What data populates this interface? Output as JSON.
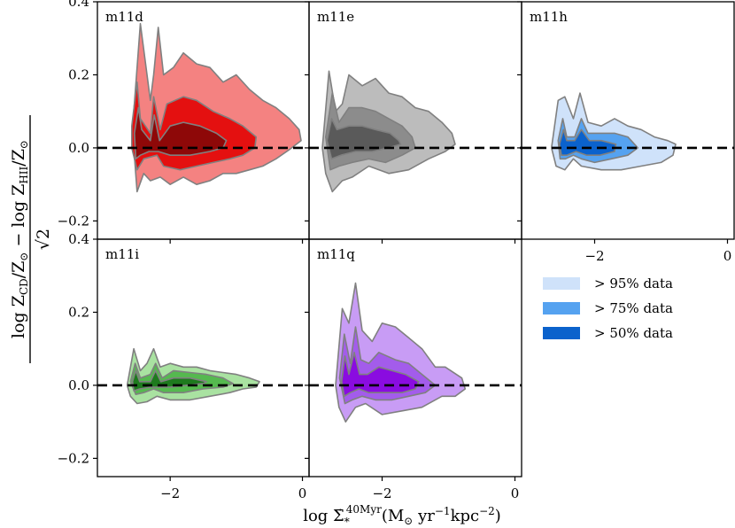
{
  "figure": {
    "ylabel": {
      "num_a": "log Z",
      "num_a_sub": "CD",
      "num_b": "/Z",
      "num_b_sub": "⊙",
      "num_c": " − log Z",
      "num_c_sub": "HII",
      "num_d": "/Z",
      "num_d_sub": "⊙",
      "den": "√2"
    },
    "xlabel": {
      "a": "log Σ̇",
      "a_sub": "*",
      "a_sup": "40Myr",
      "b": "(M",
      "b_sub": "⊙",
      "c": " yr",
      "c_sup": "−1",
      "d": "kpc",
      "d_sup": "−2",
      "e": ")"
    }
  },
  "legend": {
    "entries": [
      {
        "label": "> 95% data",
        "color": "#cfe2fa"
      },
      {
        "label": "> 75% data",
        "color": "#55a2f0"
      },
      {
        "label": "> 50% data",
        "color": "#0b62cc"
      }
    ]
  },
  "chart_data": [
    {
      "type": "contour",
      "panel": "m11d",
      "colors": {
        "outer": "#f48281",
        "mid": "#e41010",
        "inner": "#8e0808"
      },
      "xlim": [
        -3.1,
        0.1
      ],
      "ylim": [
        -0.25,
        0.4
      ],
      "xticks": [
        -2,
        0
      ],
      "yticks": [
        -0.2,
        0.0,
        0.2,
        0.4
      ],
      "xtick_labels": [
        "−2",
        "0"
      ],
      "ytick_labels": [
        "−0.2",
        "0.0",
        "0.2",
        "0.4"
      ],
      "reference_line": {
        "y": 0.0,
        "style": "dashed"
      },
      "levels": [
        {
          "label": "> 95% data",
          "x": [
            -2.55,
            -2.45,
            -2.3,
            -2.25,
            -2.18,
            -2.1,
            -1.95,
            -1.8,
            -1.6,
            -1.4,
            -1.2,
            -1.0,
            -0.8,
            -0.6,
            -0.4,
            -0.2,
            -0.05,
            -0.02,
            -0.2,
            -0.4,
            -0.6,
            -0.8,
            -1.0,
            -1.2,
            -1.4,
            -1.6,
            -1.8,
            -2.0,
            -2.15,
            -2.3,
            -2.4,
            -2.5,
            -2.55
          ],
          "y": [
            0.1,
            0.34,
            0.13,
            0.2,
            0.33,
            0.2,
            0.22,
            0.26,
            0.23,
            0.22,
            0.18,
            0.2,
            0.16,
            0.13,
            0.11,
            0.08,
            0.05,
            0.02,
            -0.005,
            -0.03,
            -0.05,
            -0.06,
            -0.07,
            -0.07,
            -0.09,
            -0.1,
            -0.08,
            -0.1,
            -0.08,
            -0.09,
            -0.07,
            -0.12,
            0.0
          ]
        },
        {
          "label": "> 75% data",
          "x": [
            -2.58,
            -2.5,
            -2.45,
            -2.3,
            -2.25,
            -2.15,
            -2.05,
            -1.8,
            -1.6,
            -1.35,
            -1.1,
            -0.9,
            -0.7,
            -0.72,
            -0.9,
            -1.1,
            -1.35,
            -1.6,
            -1.85,
            -2.1,
            -2.2,
            -2.4,
            -2.5,
            -2.58
          ],
          "y": [
            0.06,
            0.18,
            0.08,
            0.04,
            0.14,
            0.05,
            0.12,
            0.14,
            0.13,
            0.1,
            0.08,
            0.06,
            0.03,
            0.0,
            -0.02,
            -0.03,
            -0.04,
            -0.05,
            -0.06,
            -0.05,
            -0.02,
            -0.03,
            -0.06,
            0.0
          ]
        },
        {
          "label": "> 50% data",
          "x": [
            -2.54,
            -2.48,
            -2.43,
            -2.3,
            -2.24,
            -2.16,
            -2.0,
            -1.8,
            -1.55,
            -1.3,
            -1.15,
            -1.2,
            -1.4,
            -1.7,
            -2.0,
            -2.18,
            -2.32,
            -2.45,
            -2.52,
            -2.54
          ],
          "y": [
            0.04,
            0.11,
            0.05,
            0.02,
            0.09,
            0.02,
            0.06,
            0.07,
            0.06,
            0.04,
            0.02,
            0.0,
            -0.01,
            -0.02,
            -0.02,
            -0.01,
            -0.01,
            -0.02,
            -0.03,
            0.04
          ]
        }
      ]
    },
    {
      "type": "contour",
      "panel": "m11e",
      "colors": {
        "outer": "#bcbcbc",
        "mid": "#8c8c8c",
        "inner": "#5a5a5a"
      },
      "xlim": [
        -3.1,
        0.1
      ],
      "ylim": [
        -0.25,
        0.4
      ],
      "xticks": [
        -2,
        0
      ],
      "yticks": [
        -0.2,
        0.0,
        0.2,
        0.4
      ],
      "xtick_labels": [
        "−2",
        "0"
      ],
      "ytick_labels": [
        "−0.2",
        "0.0",
        "0.2",
        "0.4"
      ],
      "reference_line": {
        "y": 0.0,
        "style": "dashed"
      },
      "levels": [
        {
          "label": "> 95% data",
          "x": [
            -2.9,
            -2.8,
            -2.7,
            -2.6,
            -2.5,
            -2.3,
            -2.1,
            -1.9,
            -1.7,
            -1.5,
            -1.3,
            -1.1,
            -0.95,
            -0.9,
            -1.05,
            -1.3,
            -1.6,
            -1.9,
            -2.2,
            -2.45,
            -2.6,
            -2.75,
            -2.85,
            -2.9
          ],
          "y": [
            0.0,
            0.21,
            0.1,
            0.12,
            0.2,
            0.17,
            0.19,
            0.15,
            0.14,
            0.11,
            0.1,
            0.07,
            0.04,
            0.01,
            -0.01,
            -0.03,
            -0.06,
            -0.07,
            -0.05,
            -0.08,
            -0.09,
            -0.12,
            -0.07,
            0.0
          ]
        },
        {
          "label": "> 75% data",
          "x": [
            -2.85,
            -2.75,
            -2.65,
            -2.5,
            -2.3,
            -2.1,
            -1.9,
            -1.7,
            -1.55,
            -1.5,
            -1.7,
            -1.95,
            -2.2,
            -2.45,
            -2.65,
            -2.78,
            -2.85
          ],
          "y": [
            0.03,
            0.15,
            0.07,
            0.11,
            0.11,
            0.1,
            0.08,
            0.06,
            0.03,
            0.0,
            -0.02,
            -0.04,
            -0.03,
            -0.04,
            -0.05,
            -0.06,
            0.03
          ]
        },
        {
          "label": "> 50% data",
          "x": [
            -2.83,
            -2.76,
            -2.68,
            -2.5,
            -2.3,
            -2.1,
            -1.88,
            -1.75,
            -1.72,
            -1.9,
            -2.15,
            -2.4,
            -2.62,
            -2.76,
            -2.83
          ],
          "y": [
            0.02,
            0.08,
            0.05,
            0.06,
            0.06,
            0.05,
            0.04,
            0.02,
            0.01,
            0.0,
            -0.01,
            -0.01,
            -0.02,
            -0.03,
            0.02
          ]
        }
      ]
    },
    {
      "type": "contour",
      "panel": "m11h",
      "colors": {
        "outer": "#cfe2fa",
        "mid": "#55a2f0",
        "inner": "#0b62cc"
      },
      "xlim": [
        -3.1,
        0.1
      ],
      "ylim": [
        -0.25,
        0.4
      ],
      "xticks": [
        -2,
        0
      ],
      "yticks": [
        -0.2,
        0.0,
        0.2,
        0.4
      ],
      "xtick_labels": [
        "−2",
        "0"
      ],
      "ytick_labels": [
        "−0.2",
        "0.0",
        "0.2",
        "0.4"
      ],
      "reference_line": {
        "y": 0.0,
        "style": "dashed"
      },
      "levels": [
        {
          "label": "> 95% data",
          "x": [
            -2.65,
            -2.55,
            -2.45,
            -2.32,
            -2.22,
            -2.1,
            -1.9,
            -1.7,
            -1.5,
            -1.3,
            -1.1,
            -0.9,
            -0.78,
            -0.82,
            -1.0,
            -1.3,
            -1.6,
            -1.9,
            -2.2,
            -2.32,
            -2.45,
            -2.58,
            -2.65
          ],
          "y": [
            0.0,
            0.13,
            0.14,
            0.08,
            0.15,
            0.07,
            0.06,
            0.08,
            0.06,
            0.05,
            0.03,
            0.02,
            0.01,
            -0.02,
            -0.04,
            -0.05,
            -0.06,
            -0.06,
            -0.05,
            -0.03,
            -0.06,
            -0.05,
            0.0
          ]
        },
        {
          "label": "> 75% data",
          "x": [
            -2.55,
            -2.48,
            -2.42,
            -2.3,
            -2.2,
            -2.1,
            -1.9,
            -1.7,
            -1.5,
            -1.35,
            -1.5,
            -1.75,
            -2.0,
            -2.2,
            -2.32,
            -2.44,
            -2.52,
            -2.55
          ],
          "y": [
            0.02,
            0.08,
            0.03,
            0.03,
            0.08,
            0.04,
            0.04,
            0.04,
            0.03,
            0.0,
            -0.02,
            -0.03,
            -0.04,
            -0.03,
            -0.02,
            -0.03,
            -0.03,
            0.02
          ]
        },
        {
          "label": "> 50% data",
          "x": [
            -2.53,
            -2.47,
            -2.42,
            -2.3,
            -2.2,
            -2.08,
            -1.9,
            -1.68,
            -1.7,
            -1.92,
            -2.12,
            -2.28,
            -2.42,
            -2.5,
            -2.53
          ],
          "y": [
            0.01,
            0.05,
            0.02,
            0.02,
            0.05,
            0.02,
            0.02,
            0.01,
            -0.01,
            -0.02,
            -0.02,
            -0.01,
            -0.02,
            -0.02,
            0.01
          ]
        }
      ]
    },
    {
      "type": "contour",
      "panel": "m11i",
      "colors": {
        "outer": "#a9e2a1",
        "mid": "#55b94f",
        "inner": "#1e7a1e"
      },
      "xlim": [
        -3.1,
        0.1
      ],
      "ylim": [
        -0.25,
        0.4
      ],
      "xticks": [
        -2,
        0
      ],
      "yticks": [
        -0.2,
        0.0,
        0.2,
        0.4
      ],
      "xtick_labels": [
        "−2",
        "0"
      ],
      "ytick_labels": [
        "−0.2",
        "0.0",
        "0.2",
        "0.4"
      ],
      "reference_line": {
        "y": 0.0,
        "style": "dashed"
      },
      "levels": [
        {
          "label": "> 95% data",
          "x": [
            -2.65,
            -2.55,
            -2.45,
            -2.35,
            -2.25,
            -2.15,
            -2.0,
            -1.8,
            -1.6,
            -1.4,
            -1.2,
            -1.0,
            -0.8,
            -0.65,
            -0.7,
            -0.9,
            -1.1,
            -1.4,
            -1.7,
            -2.0,
            -2.2,
            -2.35,
            -2.5,
            -2.6,
            -2.65
          ],
          "y": [
            0.0,
            0.1,
            0.04,
            0.06,
            0.1,
            0.05,
            0.06,
            0.05,
            0.05,
            0.04,
            0.035,
            0.03,
            0.02,
            0.01,
            -0.005,
            -0.01,
            -0.02,
            -0.03,
            -0.04,
            -0.04,
            -0.03,
            -0.045,
            -0.05,
            -0.03,
            0.0
          ]
        },
        {
          "label": "> 75% data",
          "x": [
            -2.6,
            -2.53,
            -2.45,
            -2.3,
            -2.22,
            -2.12,
            -1.95,
            -1.7,
            -1.45,
            -1.2,
            -1.05,
            -1.2,
            -1.5,
            -1.8,
            -2.1,
            -2.25,
            -2.4,
            -2.52,
            -2.6
          ],
          "y": [
            0.01,
            0.06,
            0.02,
            0.03,
            0.06,
            0.02,
            0.04,
            0.035,
            0.03,
            0.02,
            0.005,
            -0.005,
            -0.01,
            -0.02,
            -0.02,
            -0.01,
            -0.02,
            -0.025,
            0.01
          ]
        },
        {
          "label": "> 50% data",
          "x": [
            -2.57,
            -2.52,
            -2.46,
            -2.3,
            -2.22,
            -2.14,
            -1.95,
            -1.7,
            -1.45,
            -1.5,
            -1.75,
            -2.0,
            -2.18,
            -2.3,
            -2.46,
            -2.55,
            -2.57
          ],
          "y": [
            0.01,
            0.04,
            0.01,
            0.01,
            0.04,
            0.01,
            0.02,
            0.02,
            0.01,
            0.005,
            0.0,
            -0.005,
            -0.005,
            -0.005,
            -0.01,
            -0.015,
            0.01
          ]
        }
      ]
    },
    {
      "type": "contour",
      "panel": "m11q",
      "colors": {
        "outer": "#c89cf5",
        "mid": "#a35ceb",
        "inner": "#8a0ce0"
      },
      "xlim": [
        -3.1,
        0.1
      ],
      "ylim": [
        -0.25,
        0.4
      ],
      "xticks": [
        -2,
        0
      ],
      "yticks": [
        -0.2,
        0.0,
        0.2,
        0.4
      ],
      "xtick_labels": [
        "−2",
        "0"
      ],
      "ytick_labels": [
        "−0.2",
        "0.0",
        "0.2",
        "0.4"
      ],
      "reference_line": {
        "y": 0.0,
        "style": "dashed"
      },
      "levels": [
        {
          "label": "> 95% data",
          "x": [
            -2.7,
            -2.6,
            -2.5,
            -2.4,
            -2.3,
            -2.15,
            -2.0,
            -1.8,
            -1.6,
            -1.4,
            -1.2,
            -1.05,
            -0.8,
            -0.75,
            -0.9,
            -1.1,
            -1.4,
            -1.7,
            -2.0,
            -2.25,
            -2.4,
            -2.55,
            -2.65,
            -2.7
          ],
          "y": [
            0.0,
            0.21,
            0.17,
            0.28,
            0.15,
            0.12,
            0.17,
            0.16,
            0.13,
            0.1,
            0.05,
            0.05,
            0.02,
            -0.01,
            -0.03,
            -0.03,
            -0.06,
            -0.07,
            -0.08,
            -0.05,
            -0.06,
            -0.1,
            -0.06,
            0.0
          ]
        },
        {
          "label": "> 75% data",
          "x": [
            -2.64,
            -2.57,
            -2.48,
            -2.4,
            -2.32,
            -2.2,
            -2.05,
            -1.8,
            -1.6,
            -1.4,
            -1.2,
            -1.35,
            -1.6,
            -1.85,
            -2.1,
            -2.3,
            -2.45,
            -2.56,
            -2.64
          ],
          "y": [
            0.02,
            0.14,
            0.06,
            0.16,
            0.07,
            0.06,
            0.09,
            0.07,
            0.06,
            0.03,
            0.0,
            -0.02,
            -0.03,
            -0.04,
            -0.04,
            -0.03,
            -0.04,
            -0.05,
            0.02
          ]
        },
        {
          "label": "> 50% data",
          "x": [
            -2.61,
            -2.56,
            -2.5,
            -2.42,
            -2.34,
            -2.22,
            -2.05,
            -1.85,
            -1.65,
            -1.45,
            -1.5,
            -1.7,
            -1.95,
            -2.2,
            -2.35,
            -2.48,
            -2.57,
            -2.61
          ],
          "y": [
            0.01,
            0.08,
            0.03,
            0.09,
            0.03,
            0.03,
            0.05,
            0.04,
            0.03,
            0.01,
            -0.01,
            -0.02,
            -0.02,
            -0.02,
            -0.01,
            -0.02,
            -0.03,
            0.01
          ]
        }
      ]
    }
  ]
}
